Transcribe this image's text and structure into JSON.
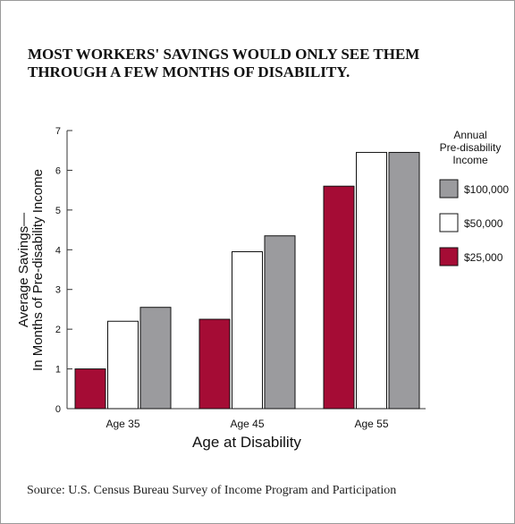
{
  "title_lines": [
    "MOST WORKERS' SAVINGS WOULD ONLY SEE THEM",
    "THROUGH A FEW MONTHS OF DISABILITY."
  ],
  "source": "Source:  U.S. Census Bureau Survey of Income Program and Participation",
  "chart_data": {
    "type": "bar",
    "title": "MOST WORKERS' SAVINGS WOULD ONLY SEE THEM THROUGH A FEW MONTHS OF DISABILITY.",
    "xlabel": "Age at Disability",
    "ylabel_lines": [
      "Average Savings—",
      "In Months of Pre-disability Income"
    ],
    "categories": [
      "Age 35",
      "Age 45",
      "Age 55"
    ],
    "ylim": [
      0,
      7
    ],
    "yticks": [
      "0",
      "1",
      "2",
      "3",
      "4",
      "5",
      "6",
      "7"
    ],
    "legend_title_lines": [
      "Annual",
      "Pre-disability",
      "Income"
    ],
    "legend_position": "right",
    "grid": false,
    "series": [
      {
        "name": "$25,000",
        "color": "#a50c35",
        "values": [
          1.0,
          2.25,
          5.6
        ]
      },
      {
        "name": "$50,000",
        "color": "#ffffff",
        "values": [
          2.2,
          3.95,
          6.45
        ]
      },
      {
        "name": "$100,000",
        "color": "#9b9b9e",
        "values": [
          2.55,
          4.35,
          6.45
        ]
      }
    ],
    "legend_order": [
      "$100,000",
      "$50,000",
      "$25,000"
    ]
  }
}
